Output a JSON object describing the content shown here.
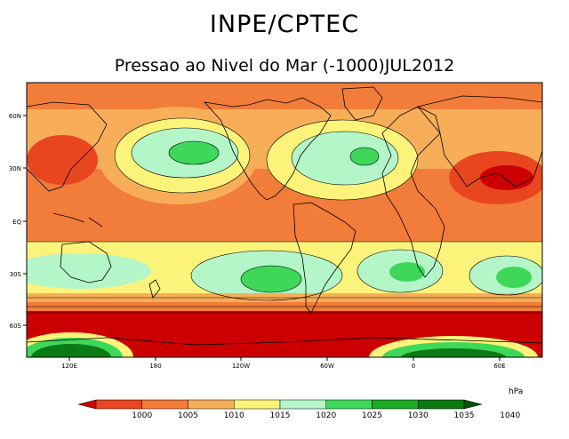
{
  "header": {
    "title": "INPE/CPTEC",
    "subtitle": "Pressao ao Nivel do Mar (-1000)JUL2012"
  },
  "map": {
    "lat_labels": [
      "60N",
      "30N",
      "EQ",
      "30S",
      "60S"
    ],
    "lon_labels": [
      "120E",
      "180",
      "120W",
      "60W",
      "0",
      "60E"
    ]
  },
  "colorbar": {
    "unit": "hPa",
    "levels": [
      "1000",
      "1005",
      "1010",
      "1015",
      "1020",
      "1025",
      "1030",
      "1035",
      "1040"
    ],
    "colors": [
      "#cc0000",
      "#e8461e",
      "#f27c3a",
      "#f8ae58",
      "#fcf47a",
      "#b4f6c8",
      "#3fd75a",
      "#1aab22",
      "#0a7a14",
      "#04500c"
    ]
  }
}
